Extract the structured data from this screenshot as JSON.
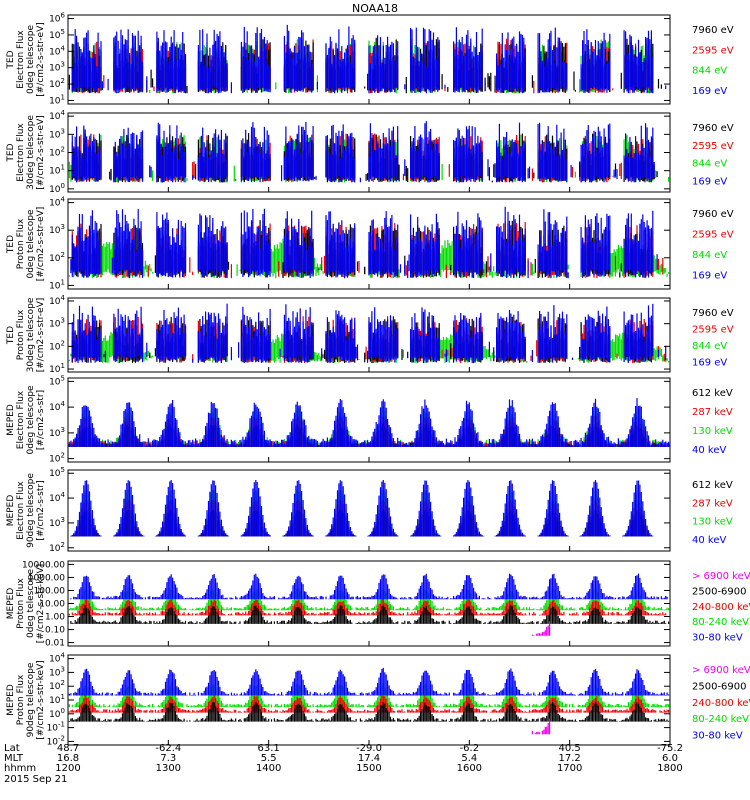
{
  "title": "NOAA18",
  "colors": {
    "black": "#000000",
    "red": "#ee0000",
    "green": "#00dd00",
    "blue": "#0000ff",
    "magenta": "#ee00ee"
  },
  "chart_data": [
    {
      "type": "line",
      "name": "ted-electron-0deg",
      "ylabel": [
        "TED",
        "Electron Flux",
        "0deg telescope",
        "[#/cm2-s-str-eV]"
      ],
      "yticks": [
        {
          "b": "10",
          "e": "1"
        },
        {
          "b": "10",
          "e": "2"
        },
        {
          "b": "10",
          "e": "3"
        },
        {
          "b": "10",
          "e": "4"
        },
        {
          "b": "10",
          "e": "5"
        },
        {
          "b": "10",
          "e": "6"
        }
      ],
      "ylim_log10": [
        0.5,
        6
      ],
      "legend": [
        {
          "label": "7960 eV",
          "color": "black"
        },
        {
          "label": "2595 eV",
          "color": "red"
        },
        {
          "label": "844 eV",
          "color": "green"
        },
        {
          "label": "169 eV",
          "color": "blue"
        }
      ]
    },
    {
      "type": "line",
      "name": "ted-electron-30deg",
      "ylabel": [
        "TED",
        "Electron Flux",
        "30deg telescope",
        "[#/cm2-s-str-eV]"
      ],
      "yticks": [
        {
          "b": "10",
          "e": "0"
        },
        {
          "b": "10",
          "e": "1"
        },
        {
          "b": "10",
          "e": "2"
        },
        {
          "b": "10",
          "e": "3"
        },
        {
          "b": "10",
          "e": "4"
        }
      ],
      "ylim_log10": [
        -0.3,
        4.5
      ],
      "legend": [
        {
          "label": "7960 eV",
          "color": "black"
        },
        {
          "label": "2595 eV",
          "color": "red"
        },
        {
          "label": "844 eV",
          "color": "green"
        },
        {
          "label": "169 eV",
          "color": "blue"
        }
      ]
    },
    {
      "type": "line",
      "name": "ted-proton-0deg",
      "ylabel": [
        "TED",
        "Proton Flux",
        "0deg telescope",
        "[#/cm2-s-str-eV]"
      ],
      "yticks": [
        {
          "b": "10",
          "e": "1"
        },
        {
          "b": "10",
          "e": "2"
        },
        {
          "b": "10",
          "e": "3"
        },
        {
          "b": "10",
          "e": "4"
        }
      ],
      "ylim_log10": [
        0.5,
        4.5
      ],
      "legend": [
        {
          "label": "7960 eV",
          "color": "black"
        },
        {
          "label": "2595 eV",
          "color": "red"
        },
        {
          "label": "844 eV",
          "color": "green"
        },
        {
          "label": "169 eV",
          "color": "blue"
        }
      ]
    },
    {
      "type": "line",
      "name": "ted-proton-30deg",
      "ylabel": [
        "TED",
        "Proton Flux",
        "30deg telescope",
        "[#/cm2-s-str-eV]"
      ],
      "yticks": [
        {
          "b": "10",
          "e": "1"
        },
        {
          "b": "10",
          "e": "2"
        },
        {
          "b": "10",
          "e": "3"
        },
        {
          "b": "10",
          "e": "4"
        }
      ],
      "ylim_log10": [
        0.5,
        4.5
      ],
      "legend": [
        {
          "label": "7960 eV",
          "color": "black"
        },
        {
          "label": "2595 eV",
          "color": "red"
        },
        {
          "label": "844 eV",
          "color": "green"
        },
        {
          "label": "169 eV",
          "color": "blue"
        }
      ]
    },
    {
      "type": "line",
      "name": "meped-electron-0deg",
      "ylabel": [
        "MEPED",
        "Electron Flux",
        "0deg telescope",
        "[#/cm2-s-str]"
      ],
      "yticks": [
        {
          "b": "10",
          "e": "2"
        },
        {
          "b": "10",
          "e": "3"
        },
        {
          "b": "10",
          "e": "4"
        },
        {
          "b": "10",
          "e": "5"
        }
      ],
      "ylim_log10": [
        1,
        5
      ],
      "legend": [
        {
          "label": "612 keV",
          "color": "black"
        },
        {
          "label": "287 keV",
          "color": "red"
        },
        {
          "label": "130 keV",
          "color": "green"
        },
        {
          "label": "40 keV",
          "color": "blue"
        }
      ]
    },
    {
      "type": "line",
      "name": "meped-electron-90deg",
      "ylabel": [
        "MEPED",
        "Electron Flux",
        "90deg telescope",
        "[#/cm2-s-str]"
      ],
      "yticks": [
        {
          "b": "10",
          "e": "2"
        },
        {
          "b": "10",
          "e": "3"
        },
        {
          "b": "10",
          "e": "4"
        },
        {
          "b": "10",
          "e": "5"
        }
      ],
      "ylim_log10": [
        1.8,
        5.3
      ],
      "legend": [
        {
          "label": "612 keV",
          "color": "black"
        },
        {
          "label": "287 keV",
          "color": "red"
        },
        {
          "label": "130 keV",
          "color": "green"
        },
        {
          "label": "40 keV",
          "color": "blue"
        }
      ]
    },
    {
      "type": "line",
      "name": "meped-proton-0deg",
      "ylabel": [
        "MEPED",
        "Proton Flux",
        "0deg telescope",
        "[#/cm2-s-str-keV]"
      ],
      "yticks": [
        {
          "t": "0.01"
        },
        {
          "t": "0.10"
        },
        {
          "t": "1.00"
        },
        {
          "t": "10.00"
        },
        {
          "t": "100.00"
        },
        {
          "t": "1000.00"
        },
        {
          "t": "10000.00"
        }
      ],
      "ylim_log10": [
        -2,
        4.4
      ],
      "legend": [
        {
          "label": "> 6900 keV",
          "color": "magenta"
        },
        {
          "label": "2500-6900",
          "color": "black"
        },
        {
          "label": "240-800 keV",
          "color": "red"
        },
        {
          "label": "80-240 keV",
          "color": "green"
        },
        {
          "label": "30-80 keV",
          "color": "blue"
        }
      ]
    },
    {
      "type": "line",
      "name": "meped-proton-90deg",
      "ylabel": [
        "MEPED",
        "Proton Flux",
        "90deg telescope",
        "[#/cm2-s-str-keV]"
      ],
      "yticks": [
        {
          "b": "10",
          "e": "-2"
        },
        {
          "b": "10",
          "e": "-1"
        },
        {
          "b": "10",
          "e": "0"
        },
        {
          "b": "10",
          "e": "1"
        },
        {
          "b": "10",
          "e": "2"
        },
        {
          "b": "10",
          "e": "3"
        },
        {
          "b": "10",
          "e": "4"
        }
      ],
      "ylim_log10": [
        -2.3,
        4.3
      ],
      "legend": [
        {
          "label": "> 6900 keV",
          "color": "magenta"
        },
        {
          "label": "2500-6900",
          "color": "black"
        },
        {
          "label": "240-800 keV",
          "color": "red"
        },
        {
          "label": "80-240 keV",
          "color": "green"
        },
        {
          "label": "30-80 keV",
          "color": "blue"
        }
      ]
    }
  ],
  "x_axis": {
    "row_labels": [
      "Lat",
      "MLT",
      "hhmm"
    ],
    "ticks": [
      {
        "lat": "48.7",
        "mlt": "16.8",
        "hhmm": "1200"
      },
      {
        "lat": "-62.4",
        "mlt": "7.3",
        "hhmm": "1300"
      },
      {
        "lat": "63.1",
        "mlt": "5.5",
        "hhmm": "1400"
      },
      {
        "lat": "-29.0",
        "mlt": "17.4",
        "hhmm": "1500"
      },
      {
        "lat": "-6.2",
        "mlt": "5.4",
        "hhmm": "1600"
      },
      {
        "lat": "40.5",
        "mlt": "17.2",
        "hhmm": "1700"
      },
      {
        "lat": "-75.2",
        "mlt": "6.0",
        "hhmm": "1800"
      }
    ],
    "date": "2015 Sep 21"
  }
}
